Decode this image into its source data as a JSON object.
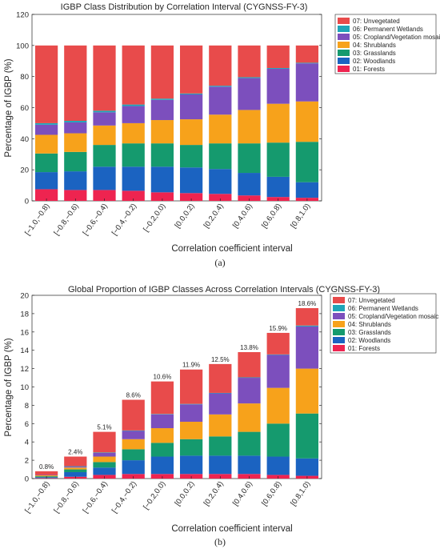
{
  "colors": {
    "01: Forests": "#ee2450",
    "02: Woodlands": "#1b63c1",
    "03: Grasslands": "#159a6e",
    "04: Shrublands": "#f7a21b",
    "05: Cropland/Vegetation mosaic": "#7c4fbd",
    "06: Permanent Wetlands": "#1fa5b8",
    "07: Unvegetated": "#e84b4b"
  },
  "chart_data": [
    {
      "type": "bar",
      "stacked": true,
      "title": "IGBP Class Distribution by Correlation Interval (CYGNSS-FY-3)",
      "xlabel": "Correlation coefficient interval",
      "ylabel": "Percentage of IGBP (%)",
      "ylim": [
        0,
        120
      ],
      "yticks": [
        "0",
        "20",
        "40",
        "60",
        "80",
        "100",
        "120"
      ],
      "categories": [
        "[−1.0,−0.8)",
        "[−0.8,−0.6)",
        "[−0.6,−0.4)",
        "[−0.4,−0.2)",
        "[−0.2,0.0)",
        "[0.0,0.2)",
        "[0.2,0.4)",
        "[0.4,0.6)",
        "[0.6,0.8)",
        "[0.8,1.0)"
      ],
      "legend_position": "top-right",
      "legend": [
        "07: Unvegetated",
        "06: Permanent Wetlands",
        "05: Cropland/Vegetation mosaic",
        "04: Shrublands",
        "03: Grasslands",
        "02: Woodlands",
        "01: Forests"
      ],
      "series": [
        {
          "name": "01: Forests",
          "values": [
            7.5,
            7.0,
            7.0,
            6.5,
            5.5,
            5.0,
            4.5,
            3.5,
            2.5,
            2.0
          ]
        },
        {
          "name": "02: Woodlands",
          "values": [
            11.0,
            12.0,
            15.0,
            15.5,
            16.5,
            16.5,
            16.0,
            14.5,
            13.0,
            10.0
          ]
        },
        {
          "name": "03: Grasslands",
          "values": [
            12.0,
            12.5,
            14.0,
            15.0,
            15.0,
            14.5,
            16.5,
            19.0,
            22.0,
            26.0
          ]
        },
        {
          "name": "04: Shrublands",
          "values": [
            12.0,
            12.0,
            12.5,
            13.0,
            15.0,
            16.5,
            18.5,
            21.5,
            25.0,
            26.0
          ]
        },
        {
          "name": "05: Cropland/Vegetation mosaic",
          "values": [
            6.5,
            7.0,
            8.5,
            11.0,
            13.0,
            16.0,
            18.0,
            20.5,
            22.5,
            24.5
          ]
        },
        {
          "name": "06: Permanent Wetlands",
          "values": [
            1.0,
            1.0,
            1.0,
            1.0,
            0.8,
            0.6,
            0.6,
            0.6,
            0.5,
            0.4
          ]
        },
        {
          "name": "07: Unvegetated",
          "values": [
            50.0,
            48.5,
            42.0,
            38.0,
            34.2,
            30.9,
            25.9,
            20.4,
            14.5,
            11.1
          ]
        }
      ]
    },
    {
      "type": "bar",
      "stacked": true,
      "title": "Global Proportion of IGBP Classes Across Correlation Intervals (CYGNSS-FY-3)",
      "xlabel": "Correlation coefficient interval",
      "ylabel": "Percentage of IGBP (%)",
      "ylim": [
        0,
        20
      ],
      "yticks": [
        "0",
        "2",
        "4",
        "6",
        "8",
        "10",
        "12",
        "14",
        "16",
        "18",
        "20"
      ],
      "categories": [
        "[−1.0,−0.8)",
        "[−0.8,−0.6)",
        "[−0.6,−0.4)",
        "[−0.4,−0.2)",
        "[−0.2,0.0)",
        "[0.0,0.2)",
        "[0.2,0.4)",
        "[0.4,0.6)",
        "[0.6,0.8)",
        "[0.8,1.0)"
      ],
      "totals_labels": [
        "0.8%",
        "2.4%",
        "5.1%",
        "8.6%",
        "10.6%",
        "11.9%",
        "12.5%",
        "13.8%",
        "15.9%",
        "18.6%"
      ],
      "legend_position": "top-right",
      "legend": [
        "07: Unvegetated",
        "06: Permanent Wetlands",
        "05: Cropland/Vegetation mosaic",
        "04: Shrublands",
        "03: Grasslands",
        "02: Woodlands",
        "01: Forests"
      ],
      "series": [
        {
          "name": "01: Forests",
          "values": [
            0.05,
            0.2,
            0.4,
            0.5,
            0.5,
            0.5,
            0.5,
            0.5,
            0.4,
            0.3
          ]
        },
        {
          "name": "02: Woodlands",
          "values": [
            0.1,
            0.5,
            0.8,
            1.5,
            1.9,
            2.0,
            2.0,
            2.0,
            2.0,
            1.9
          ]
        },
        {
          "name": "03: Grasslands",
          "values": [
            0.1,
            0.3,
            0.6,
            1.2,
            1.5,
            1.8,
            2.1,
            2.6,
            3.6,
            4.9
          ]
        },
        {
          "name": "04: Shrublands",
          "values": [
            0.1,
            0.2,
            0.6,
            1.1,
            1.6,
            1.9,
            2.4,
            3.1,
            3.9,
            4.9
          ]
        },
        {
          "name": "05: Cropland/Vegetation mosaic",
          "values": [
            0.05,
            0.1,
            0.4,
            0.9,
            1.5,
            1.9,
            2.3,
            2.8,
            3.6,
            4.6
          ]
        },
        {
          "name": "06: Permanent Wetlands",
          "values": [
            0.0,
            0.05,
            0.05,
            0.05,
            0.05,
            0.05,
            0.05,
            0.05,
            0.05,
            0.1
          ]
        },
        {
          "name": "07: Unvegetated",
          "values": [
            0.4,
            1.05,
            2.25,
            3.35,
            3.55,
            3.75,
            3.15,
            2.75,
            2.35,
            1.9
          ]
        }
      ]
    }
  ],
  "panel_labels": [
    "(a)",
    "(b)"
  ]
}
